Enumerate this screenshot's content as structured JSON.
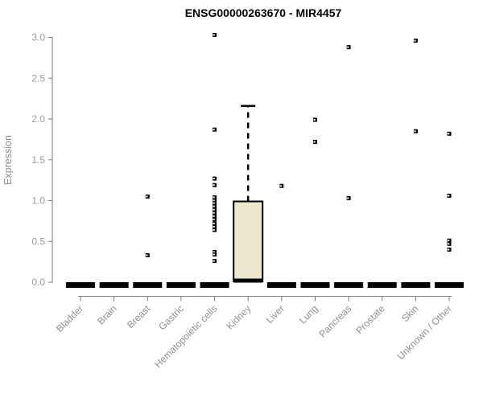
{
  "colors": {
    "background": "#ffffff",
    "box_fill": "#ECE8CD",
    "box_stroke": "#000000",
    "collapsed_box": "#000000",
    "axis_line": "#7a7a7a",
    "tick_label": "#9b9b9b",
    "category_label": "#8f8f8f",
    "title_color": "#000000",
    "outlier": "#000000"
  },
  "chart_data": {
    "type": "boxplot",
    "title": "ENSG00000263670 - MIR4457",
    "xlabel": "",
    "ylabel": "Expression",
    "ylim": [
      0.0,
      3.0
    ],
    "yticks": [
      0.0,
      0.5,
      1.0,
      1.5,
      2.0,
      2.5,
      3.0
    ],
    "grid": false,
    "legend": "none",
    "categories": [
      "Bladder",
      "Brain",
      "Breast",
      "Gastric",
      "Hematopoietic cells",
      "Kidney",
      "Liver",
      "Lung",
      "Pancreas",
      "Prostate",
      "Skin",
      "Unknown / Other"
    ],
    "series": [
      {
        "name": "Bladder",
        "q1": 0,
        "median": 0,
        "q3": 0,
        "whisker_low": 0,
        "whisker_high": 0,
        "outliers": []
      },
      {
        "name": "Brain",
        "q1": 0,
        "median": 0,
        "q3": 0,
        "whisker_low": 0,
        "whisker_high": 0,
        "outliers": []
      },
      {
        "name": "Breast",
        "q1": 0,
        "median": 0,
        "q3": 0,
        "whisker_low": 0,
        "whisker_high": 0,
        "outliers": [
          1.05,
          0.33
        ]
      },
      {
        "name": "Gastric",
        "q1": 0,
        "median": 0,
        "q3": 0,
        "whisker_low": 0,
        "whisker_high": 0,
        "outliers": []
      },
      {
        "name": "Hematopoietic cells",
        "q1": 0,
        "median": 0,
        "q3": 0,
        "whisker_low": 0,
        "whisker_high": 0,
        "outliers": [
          3.03,
          1.87,
          1.27,
          1.19,
          1.04,
          1.0,
          0.97,
          0.93,
          0.89,
          0.85,
          0.81,
          0.77,
          0.72,
          0.68,
          0.64,
          0.37,
          0.34,
          0.26
        ]
      },
      {
        "name": "Kidney",
        "q1": 0.01,
        "median": 0.02,
        "q3": 0.99,
        "whisker_low": 0,
        "whisker_high": 2.16,
        "outliers": []
      },
      {
        "name": "Liver",
        "q1": 0,
        "median": 0,
        "q3": 0,
        "whisker_low": 0,
        "whisker_high": 0,
        "outliers": [
          1.18
        ]
      },
      {
        "name": "Lung",
        "q1": 0,
        "median": 0,
        "q3": 0,
        "whisker_low": 0,
        "whisker_high": 0,
        "outliers": [
          1.99,
          1.72
        ]
      },
      {
        "name": "Pancreas",
        "q1": 0,
        "median": 0,
        "q3": 0,
        "whisker_low": 0,
        "whisker_high": 0,
        "outliers": [
          2.88,
          1.03
        ]
      },
      {
        "name": "Prostate",
        "q1": 0,
        "median": 0,
        "q3": 0,
        "whisker_low": 0,
        "whisker_high": 0,
        "outliers": []
      },
      {
        "name": "Skin",
        "q1": 0,
        "median": 0,
        "q3": 0,
        "whisker_low": 0,
        "whisker_high": 0,
        "outliers": [
          2.96,
          1.85
        ]
      },
      {
        "name": "Unknown / Other",
        "q1": 0,
        "median": 0,
        "q3": 0,
        "whisker_low": 0,
        "whisker_high": 0,
        "outliers": [
          1.82,
          1.06,
          0.51,
          0.47,
          0.4
        ]
      }
    ]
  }
}
